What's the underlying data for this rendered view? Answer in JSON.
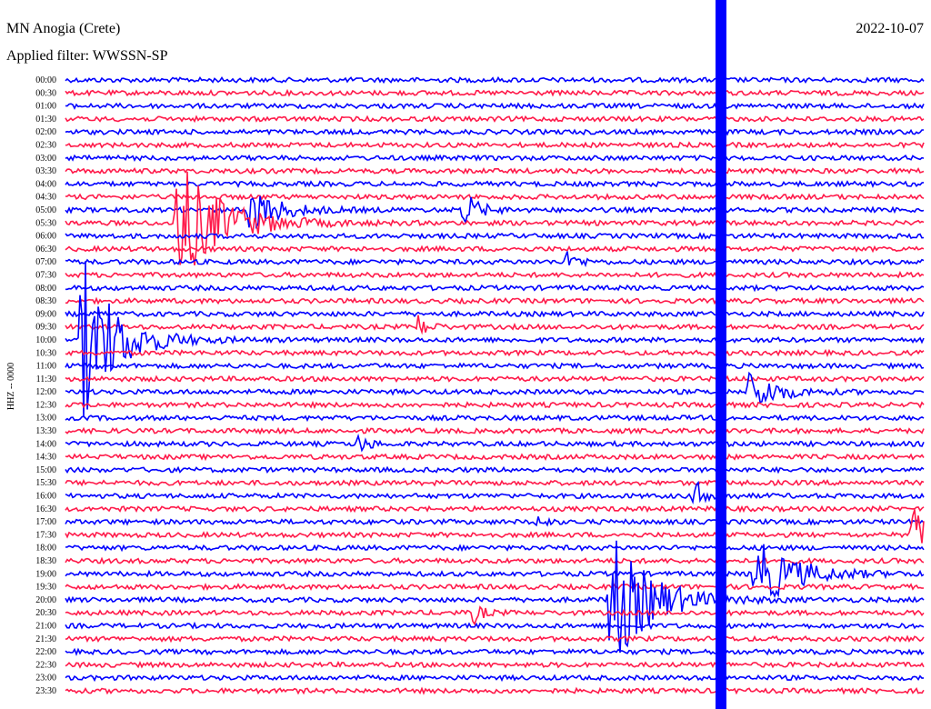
{
  "header": {
    "station": "MN Anogia (Crete)",
    "date": "2022-10-07",
    "filter": "Applied filter: WWSSN-SP"
  },
  "channel_label": "HHZ -- 0000",
  "trace_colors": [
    "#0000ff",
    "#ff1a4a"
  ],
  "rows": [
    "00:00",
    "00:30",
    "01:00",
    "01:30",
    "02:00",
    "02:30",
    "03:00",
    "03:30",
    "04:00",
    "04:30",
    "05:00",
    "05:30",
    "06:00",
    "06:30",
    "07:00",
    "07:30",
    "08:00",
    "08:30",
    "09:00",
    "09:30",
    "10:00",
    "10:30",
    "11:00",
    "11:30",
    "12:00",
    "12:30",
    "13:00",
    "13:30",
    "14:00",
    "14:30",
    "15:00",
    "15:30",
    "16:00",
    "16:30",
    "17:00",
    "17:30",
    "18:00",
    "18:30",
    "19:00",
    "19:30",
    "20:00",
    "20:30",
    "21:00",
    "21:30",
    "22:00",
    "22:30",
    "23:00",
    "23:30"
  ]
}
